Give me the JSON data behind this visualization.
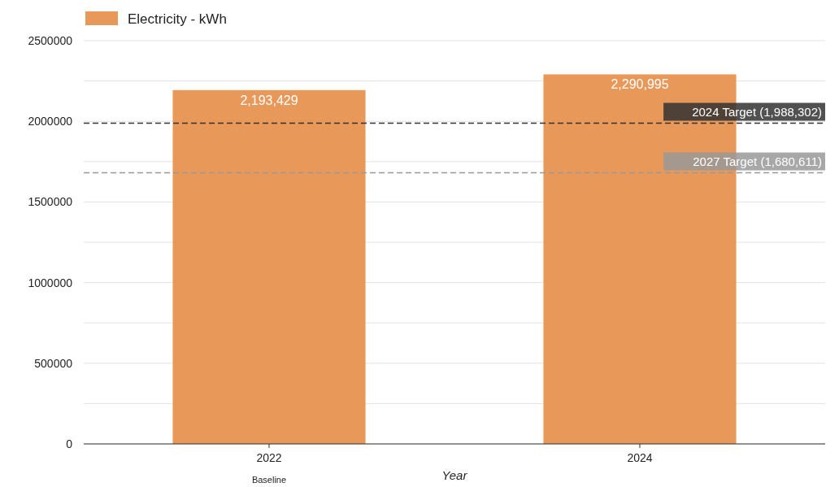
{
  "chart_data": {
    "type": "bar",
    "xlabel": "Year",
    "categories": [
      "2022",
      "2024"
    ],
    "series": [
      {
        "name": "Electricity - kWh",
        "color": "#e8995a",
        "values": [
          2193429,
          2290995
        ],
        "value_labels": [
          "2,193,429",
          "2,290,995"
        ]
      }
    ],
    "ylim": [
      0,
      2500000
    ],
    "yticks": [
      0,
      {
        "value": 250000,
        "label": null
      },
      500000,
      {
        "value": 750000,
        "label": null
      },
      1000000,
      {
        "value": 1250000,
        "label": null
      },
      1500000,
      {
        "value": 1750000,
        "label": null
      },
      2000000,
      {
        "value": 2250000,
        "label": null
      },
      2500000
    ],
    "grid": "y",
    "legend": "top",
    "ref_lines": [
      {
        "axis": "y",
        "value": 1988302,
        "label": "2024 Target (1,988,302)",
        "color": "#333333",
        "line_style": "dashed"
      },
      {
        "axis": "y",
        "value": 1680611,
        "label": "2027 Target (1,680,611)",
        "color": "#999999",
        "line_style": "dashed"
      }
    ],
    "annotations": [
      "Baseline"
    ]
  }
}
